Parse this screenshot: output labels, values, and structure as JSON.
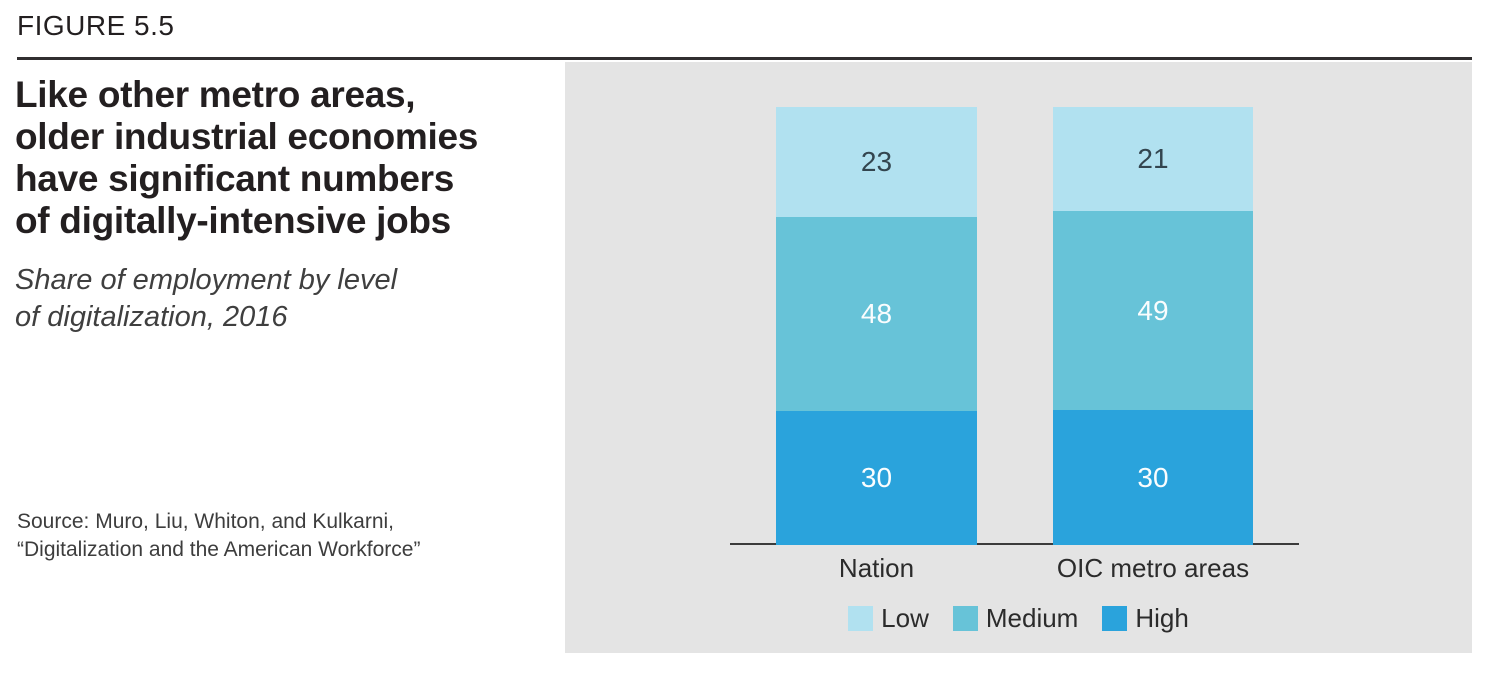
{
  "figure": {
    "label": "FIGURE 5.5",
    "title": "Like other metro areas,\nolder industrial economies\nhave significant numbers\nof digitally-intensive jobs",
    "subtitle": "Share of employment by level\nof digitalization, 2016",
    "source": "Source: Muro, Liu, Whiton, and Kulkarni,\n“Digitalization and the American Workforce”"
  },
  "chart_data": {
    "type": "bar",
    "stacked": true,
    "title": "Like other metro areas, older industrial economies have significant numbers of digitally-intensive jobs",
    "subtitle": "Share of employment by level of digitalization, 2016",
    "categories": [
      "Nation",
      "OIC metro areas"
    ],
    "series": [
      {
        "name": "Low",
        "values": [
          23,
          21
        ]
      },
      {
        "name": "Medium",
        "values": [
          48,
          49
        ]
      },
      {
        "name": "High",
        "values": [
          30,
          30
        ]
      }
    ],
    "xlabel": "",
    "ylabel": "",
    "ylim": [
      0,
      101
    ],
    "grid": false,
    "legend_position": "bottom",
    "legend_labels": [
      "Low",
      "Medium",
      "High"
    ],
    "colors": {
      "Low": "#b1e1f0",
      "Medium": "#67c3d8",
      "High": "#2aa3dc"
    },
    "value_label_colors": {
      "Low": "#33454f",
      "Medium": "#fafdfe",
      "High": "#fafdfe"
    },
    "panel_background": "#e4e4e4"
  }
}
